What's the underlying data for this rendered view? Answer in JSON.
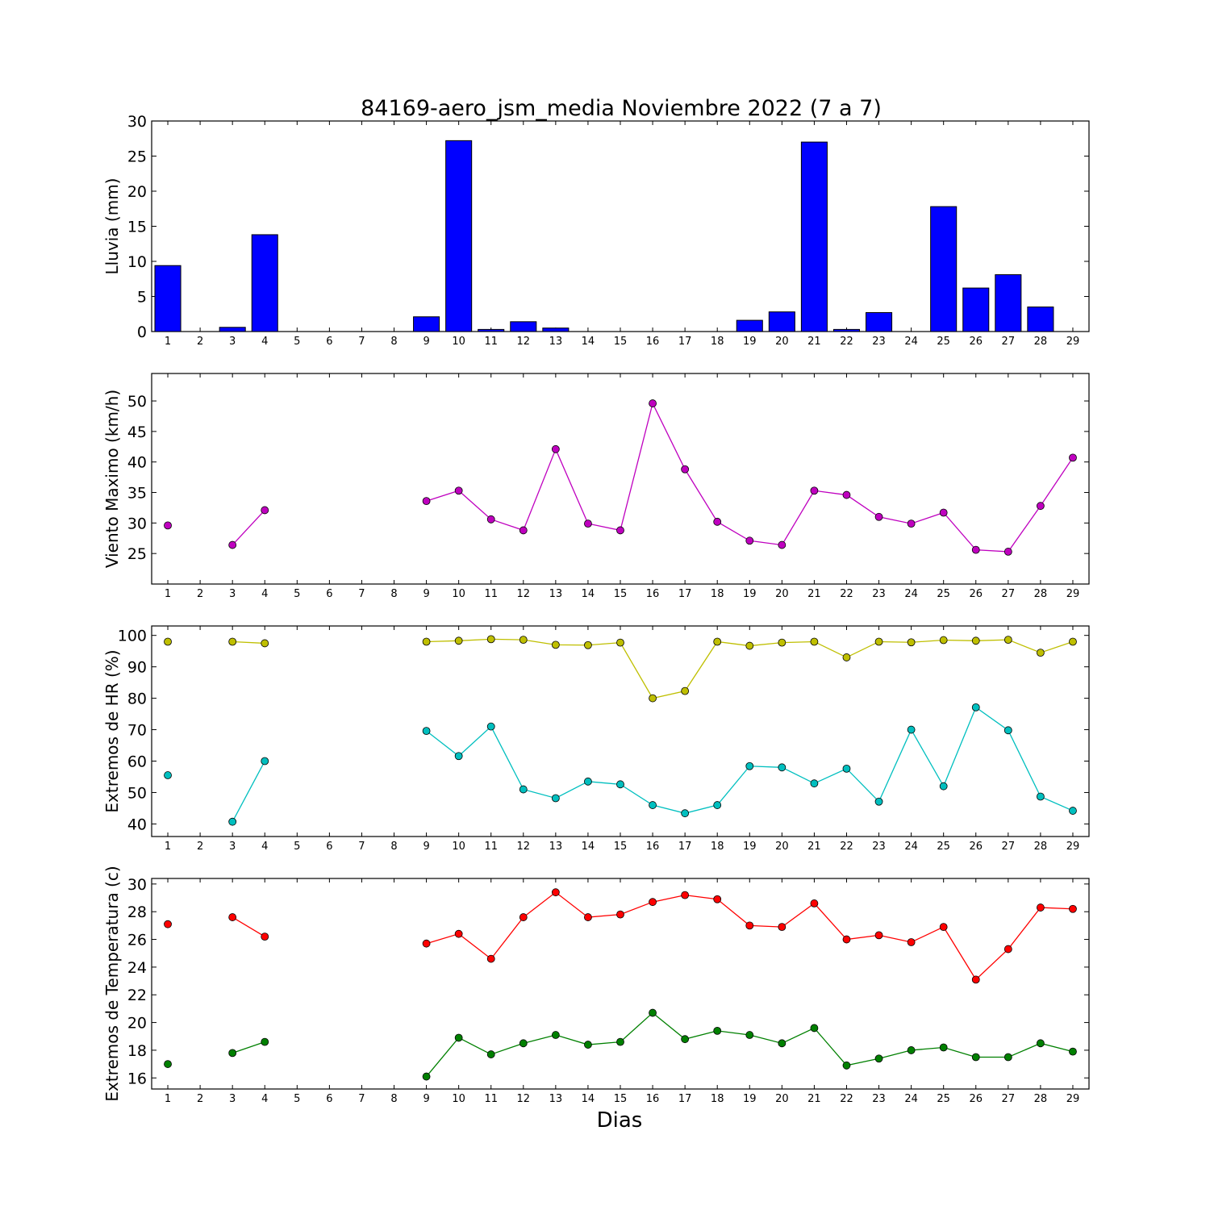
{
  "colors": {
    "bar_fill": "#0000ff",
    "wind": "#bf00bf",
    "hr_max": "#bfbf00",
    "hr_min": "#00bfbf",
    "temp_max": "#ff0000",
    "temp_min": "#008000"
  },
  "chart_data": [
    {
      "type": "bar",
      "title": "84169-aero_jsm_media Noviembre 2022  (7 a 7)",
      "ylabel": "Lluvia (mm)",
      "xlabel": "",
      "ylim": [
        0,
        30
      ],
      "yticks": [
        0,
        5,
        10,
        15,
        20,
        25,
        30
      ],
      "categories": [
        "1",
        "2",
        "3",
        "4",
        "5",
        "6",
        "7",
        "8",
        "9",
        "10",
        "11",
        "12",
        "13",
        "14",
        "15",
        "16",
        "17",
        "18",
        "19",
        "20",
        "21",
        "22",
        "23",
        "24",
        "25",
        "26",
        "27",
        "28",
        "29"
      ],
      "series": [
        {
          "values": [
            9.4,
            0,
            0.6,
            13.8,
            0,
            0,
            0,
            0,
            2.1,
            27.2,
            0.3,
            1.4,
            0.5,
            0,
            0,
            0,
            0,
            0,
            1.6,
            2.8,
            27.0,
            0.3,
            2.7,
            0,
            17.8,
            6.2,
            8.1,
            3.5,
            0
          ]
        }
      ]
    },
    {
      "type": "line",
      "title": "",
      "ylabel": "Viento Maximo (km/h)",
      "xlabel": "",
      "ylim": [
        20,
        54.5
      ],
      "yticks": [
        25,
        30,
        35,
        40,
        45,
        50
      ],
      "categories": [
        "1",
        "2",
        "3",
        "4",
        "5",
        "6",
        "7",
        "8",
        "9",
        "10",
        "11",
        "12",
        "13",
        "14",
        "15",
        "16",
        "17",
        "18",
        "19",
        "20",
        "21",
        "22",
        "23",
        "24",
        "25",
        "26",
        "27",
        "28",
        "29"
      ],
      "series": [
        {
          "values": [
            29.6,
            null,
            26.4,
            32.1,
            null,
            null,
            null,
            null,
            33.6,
            35.3,
            30.6,
            28.8,
            42.1,
            29.9,
            28.8,
            49.6,
            38.8,
            30.2,
            27.1,
            26.4,
            35.3,
            34.6,
            31.0,
            29.9,
            31.7,
            25.6,
            25.3,
            32.8,
            40.7
          ]
        }
      ]
    },
    {
      "type": "line",
      "title": "",
      "ylabel": "Extremos de HR (%)",
      "xlabel": "",
      "ylim": [
        36,
        103
      ],
      "yticks": [
        40,
        50,
        60,
        70,
        80,
        90,
        100
      ],
      "categories": [
        "1",
        "2",
        "3",
        "4",
        "5",
        "6",
        "7",
        "8",
        "9",
        "10",
        "11",
        "12",
        "13",
        "14",
        "15",
        "16",
        "17",
        "18",
        "19",
        "20",
        "21",
        "22",
        "23",
        "24",
        "25",
        "26",
        "27",
        "28",
        "29"
      ],
      "series": [
        {
          "values": [
            98,
            null,
            98,
            97.5,
            null,
            null,
            null,
            null,
            98,
            98.3,
            98.8,
            98.6,
            97,
            96.9,
            97.7,
            80,
            82.3,
            98,
            96.7,
            97.7,
            98,
            93,
            98,
            97.8,
            98.5,
            98.3,
            98.6,
            94.5,
            98
          ]
        },
        {
          "values": [
            55.5,
            null,
            40.7,
            60,
            null,
            null,
            null,
            null,
            69.6,
            61.6,
            71,
            51,
            48.2,
            53.5,
            52.6,
            46,
            43.4,
            46,
            58.4,
            58,
            52.9,
            57.6,
            47.1,
            70,
            52,
            77.1,
            69.8,
            48.7,
            44.2
          ]
        }
      ]
    },
    {
      "type": "line",
      "title": "",
      "ylabel": "Extremos de Temperatura (c)",
      "xlabel": "Dias",
      "ylim": [
        15.2,
        30.4
      ],
      "yticks": [
        16,
        18,
        20,
        22,
        24,
        26,
        28,
        30
      ],
      "categories": [
        "1",
        "2",
        "3",
        "4",
        "5",
        "6",
        "7",
        "8",
        "9",
        "10",
        "11",
        "12",
        "13",
        "14",
        "15",
        "16",
        "17",
        "18",
        "19",
        "20",
        "21",
        "22",
        "23",
        "24",
        "25",
        "26",
        "27",
        "28",
        "29"
      ],
      "series": [
        {
          "values": [
            27.1,
            null,
            27.6,
            26.2,
            null,
            null,
            null,
            null,
            25.7,
            26.4,
            24.6,
            27.6,
            29.4,
            27.6,
            27.8,
            28.7,
            29.2,
            28.9,
            27.0,
            26.9,
            28.6,
            26.0,
            26.3,
            25.8,
            26.9,
            23.1,
            25.3,
            28.3,
            28.2
          ]
        },
        {
          "values": [
            17.0,
            null,
            17.8,
            18.6,
            null,
            null,
            null,
            null,
            16.1,
            18.9,
            17.7,
            18.5,
            19.1,
            18.4,
            18.6,
            20.7,
            18.8,
            19.4,
            19.1,
            18.5,
            19.6,
            16.9,
            17.4,
            18.0,
            18.2,
            17.5,
            17.5,
            18.5,
            17.9
          ]
        }
      ]
    }
  ]
}
